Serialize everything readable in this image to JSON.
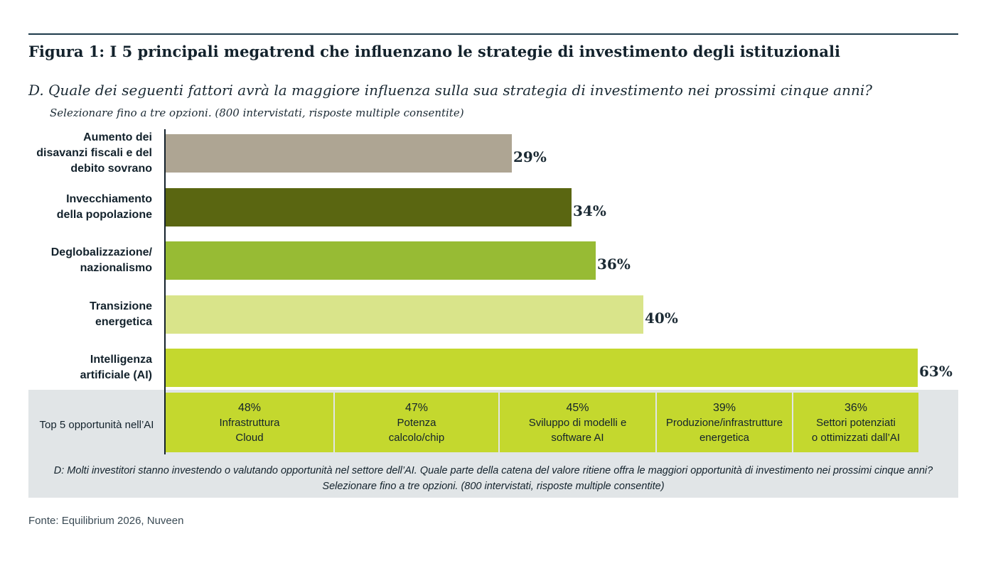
{
  "figure": {
    "title": "Figura 1: I 5 principali megatrend che influenzano le strategie di investimento degli istituzionali",
    "question": "D. Quale dei seguenti fattori avrà la maggiore influenza sulla sua strategia di investimento nei prossimi cinque anni?",
    "instruction": "Selezionare fino a tre opzioni. (800 intervistati, risposte multiple consentite)",
    "source": "Fonte: Equilibrium 2026, Nuveen"
  },
  "chart_data": {
    "type": "bar",
    "orientation": "horizontal",
    "title": "Figura 1: I 5 principali megatrend che influenzano le strategie di investimento degli istituzionali",
    "xlabel": "",
    "ylabel": "",
    "xlim": [
      0,
      63
    ],
    "grid": false,
    "categories": [
      [
        "Aumento dei",
        "disavanzi fiscali e del",
        "debito sovrano"
      ],
      [
        "Invecchiamento",
        "della popolazione"
      ],
      [
        "Deglobalizzazione/",
        "nazionalismo"
      ],
      [
        "Transizione",
        "energetica"
      ],
      [
        "Intelligenza",
        "artificiale (AI)"
      ]
    ],
    "values": [
      29,
      34,
      36,
      40,
      63
    ],
    "value_labels": [
      "29%",
      "34%",
      "36%",
      "40%",
      "63%"
    ],
    "colors": [
      "#aea593",
      "#5a6611",
      "#97bb34",
      "#d9e48a",
      "#c4d82e"
    ]
  },
  "ai_opportunities": {
    "row_label": "Top 5 opportunità nell’AI",
    "items": [
      {
        "pct": "48%",
        "lines": [
          "Infrastruttura",
          "Cloud"
        ]
      },
      {
        "pct": "47%",
        "lines": [
          "Potenza",
          "calcolo/chip"
        ]
      },
      {
        "pct": "45%",
        "lines": [
          "Sviluppo di modelli e",
          "software AI"
        ]
      },
      {
        "pct": "39%",
        "lines": [
          "Produzione/infrastrutture",
          "energetica"
        ]
      },
      {
        "pct": "36%",
        "lines": [
          "Settori potenziati",
          "o ottimizzati dall’AI"
        ]
      }
    ],
    "footnote_lines": [
      "D: Molti investitori stanno investendo o valutando opportunità nel settore dell’AI. Quale parte della catena del valore ritiene offra le maggiori opportunità di investimento nei prossimi cinque anni?",
      "Selezionare fino a tre opzioni. (800 intervistati, risposte multiple consentite)"
    ],
    "cell_color": "#c4d82e",
    "panel_color": "#e1e5e7"
  }
}
